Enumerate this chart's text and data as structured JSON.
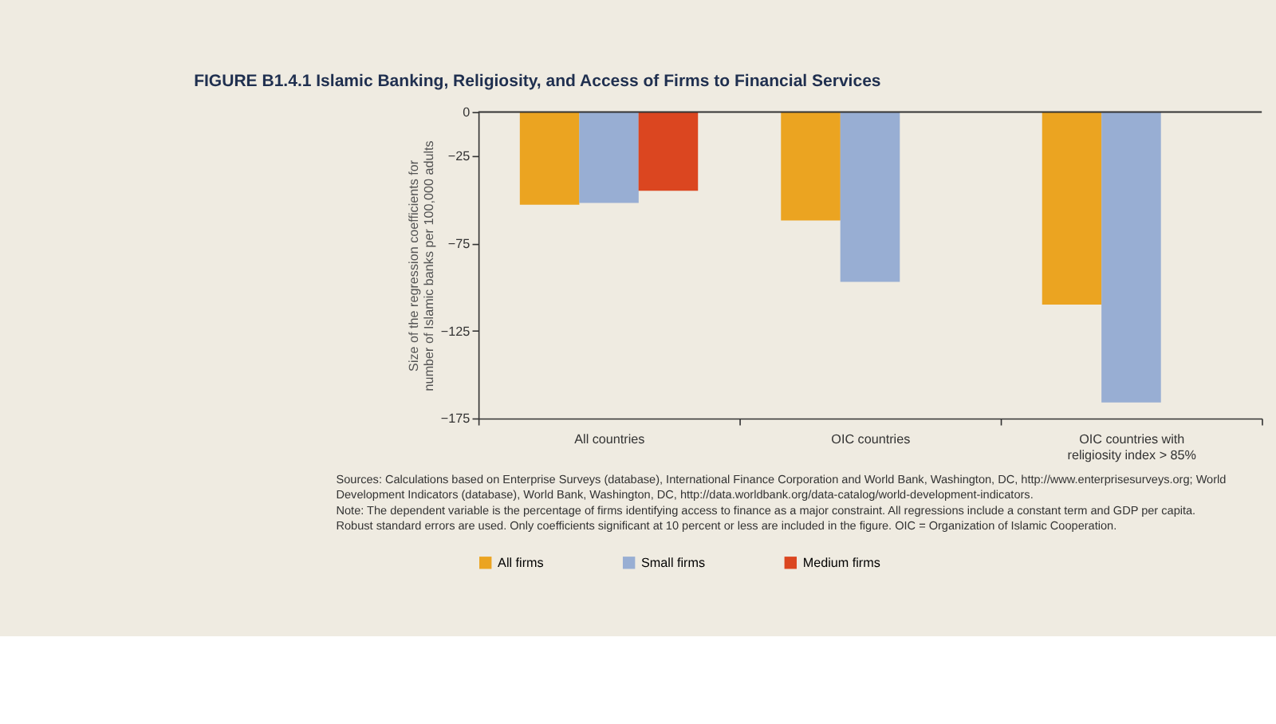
{
  "chart_data": {
    "type": "bar",
    "title": "FIGURE B1.4.1  Islamic Banking, Religiosity, and Access of Firms to Financial Services",
    "ylabel": "Size of the regression coefficients for number of Islamic banks per 100,000 adults",
    "categories": [
      "All countries",
      "OIC countries",
      "OIC countries with religiosity index > 85%"
    ],
    "series": [
      {
        "name": "All firms",
        "color": "#eba421",
        "values": [
          -53,
          -62,
          -110
        ]
      },
      {
        "name": "Small firms",
        "color": "#98aed3",
        "values": [
          -52,
          -97,
          -166
        ]
      },
      {
        "name": "Medium firms",
        "color": "#db4620",
        "values": [
          -45,
          null,
          null
        ]
      }
    ],
    "ylim": [
      -175,
      0
    ],
    "yticks": [
      0,
      -25,
      -75,
      -125,
      -175
    ],
    "ref_lines": [
      {
        "axis": "y",
        "value": 0
      }
    ],
    "legend": "bottom",
    "grid": false,
    "annotations": [
      "Sources: Calculations based on Enterprise Surveys (database), International Finance Corporation and World Bank, Washington, DC, http://www.enterprisesurveys.org; World Development Indicators (database), World Bank, Washington, DC, http://data.worldbank.org/data-catalog/world-development-indicators.",
      "Note: The dependent variable is the percentage of firms identifying access to finance as a major constraint. All regressions include a constant term and GDP per capita. Robust standard errors are used. Only coefficients significant at 10 percent or less are included in the figure. OIC = Organization of Islamic Cooperation."
    ]
  }
}
